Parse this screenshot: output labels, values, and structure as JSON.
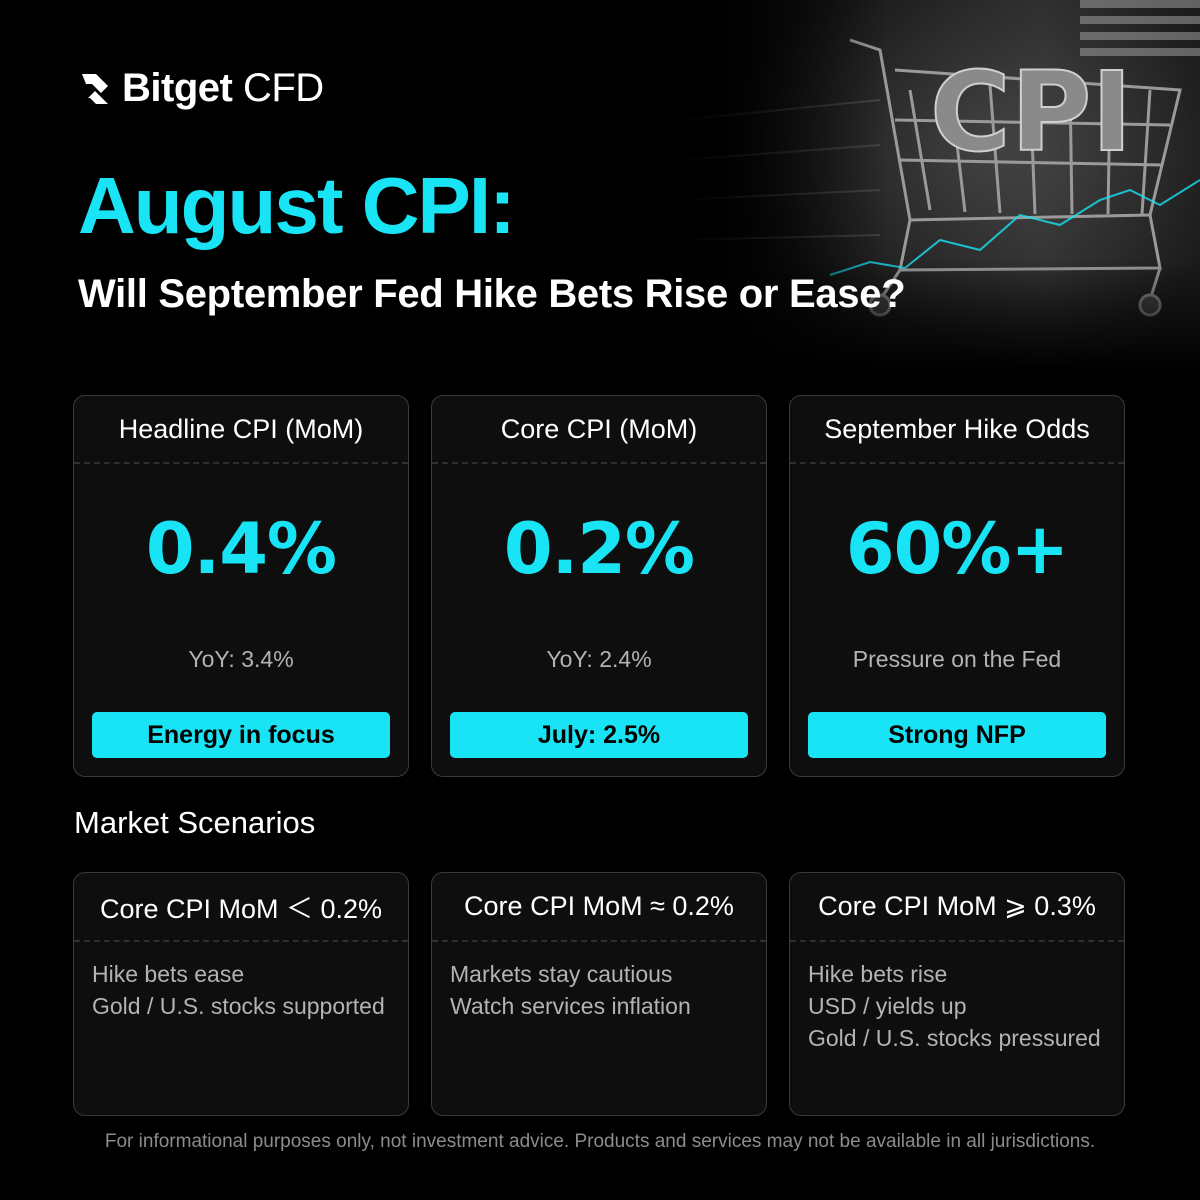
{
  "brand": {
    "name_bold": "Bitget",
    "name_light": "CFD",
    "logo_icon": "bitget-arrow-icon"
  },
  "hero_image": {
    "text": "CPI"
  },
  "title": "August CPI:",
  "subtitle": "Will September Fed Hike Bets Rise or Ease?",
  "stats": [
    {
      "heading": "Headline CPI (MoM)",
      "value": "0.4%",
      "detail": "YoY: 3.4%",
      "tag": "Energy in focus"
    },
    {
      "heading": "Core CPI (MoM)",
      "value": "0.2%",
      "detail": "YoY: 2.4%",
      "tag": "July: 2.5%"
    },
    {
      "heading": "September Hike Odds",
      "value": "60%+",
      "detail": "Pressure on the Fed",
      "tag": "Strong NFP"
    }
  ],
  "scenarios_title": "Market Scenarios",
  "scenarios": [
    {
      "heading": "Core CPI MoM ＜ 0.2%",
      "lines": [
        "Hike bets ease",
        "Gold / U.S. stocks supported"
      ]
    },
    {
      "heading": "Core CPI MoM ≈ 0.2%",
      "lines": [
        "Markets stay cautious",
        "Watch services inflation"
      ]
    },
    {
      "heading": "Core CPI MoM ⩾ 0.3%",
      "lines": [
        "Hike bets rise",
        "USD / yields up",
        "Gold / U.S. stocks pressured"
      ]
    }
  ],
  "disclaimer": "For informational purposes only, not investment advice. Products and services may not be available in all jurisdictions.",
  "colors": {
    "accent": "#19e4f5",
    "background": "#000000",
    "card": "#0e0e0e"
  }
}
